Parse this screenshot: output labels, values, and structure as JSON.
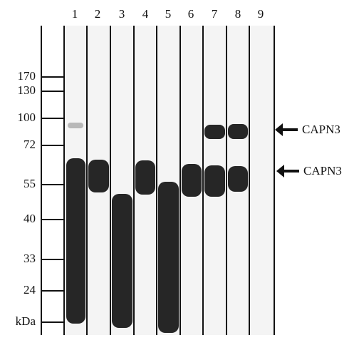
{
  "lanes": [
    "1",
    "2",
    "3",
    "4",
    "5",
    "6",
    "7",
    "8",
    "9"
  ],
  "markers": [
    "170",
    "130",
    "100",
    "72",
    "55",
    "40",
    "33",
    "24",
    "kDa"
  ],
  "annotations": [
    "CAPN3",
    "CAPN3"
  ]
}
